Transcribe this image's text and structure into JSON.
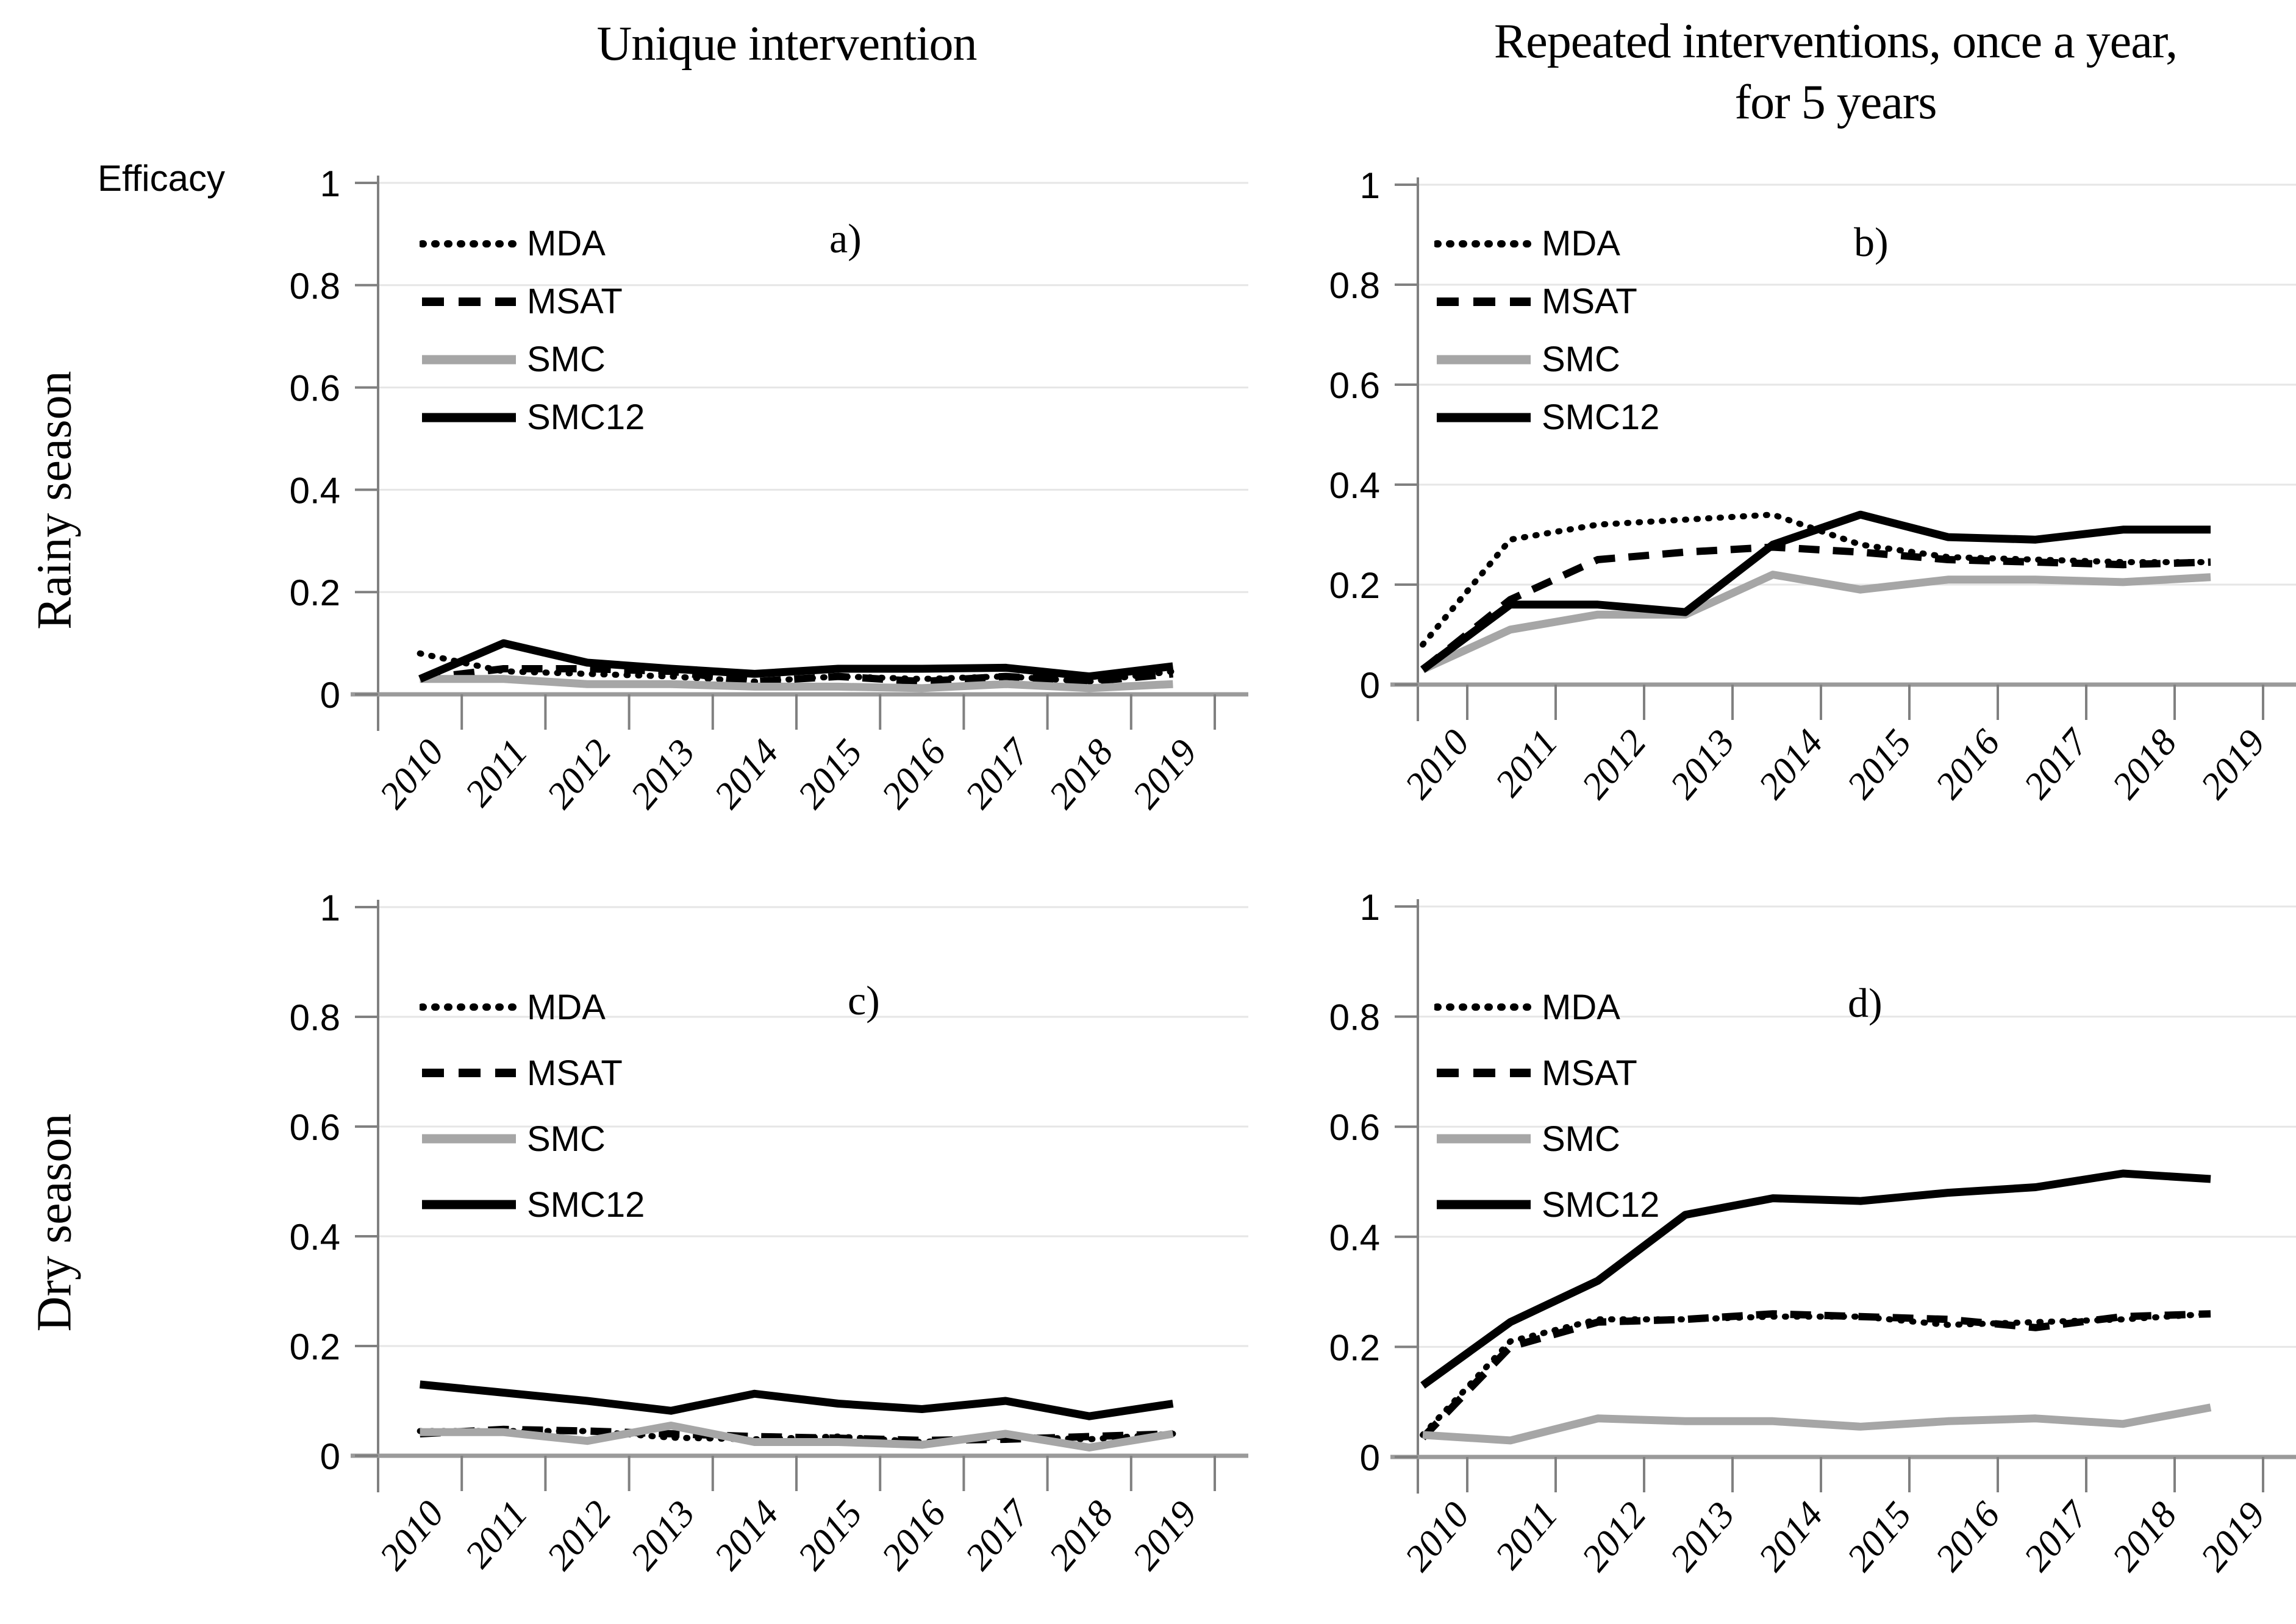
{
  "figure": {
    "col_title_left": "Unique intervention",
    "col_title_right_line1": "Repeated interventions, once a year,",
    "col_title_right_line2": "for 5 years",
    "y_axis_label": "Efficacy",
    "row_labels": [
      "Rainy season",
      "Dry season"
    ],
    "colors": {
      "black": "#000000",
      "gray": "#a6a6a6",
      "gridline": "#e6e6e6",
      "axis": "#9a9a9a"
    }
  },
  "legend": {
    "items": [
      {
        "label": "MDA",
        "icon": "dotted-line-swatch",
        "style": "dotted",
        "color": "#000000"
      },
      {
        "label": "MSAT",
        "icon": "dashed-line-swatch",
        "style": "dashed",
        "color": "#000000"
      },
      {
        "label": "SMC",
        "icon": "solid-line-swatch",
        "style": "solid",
        "color": "#a6a6a6"
      },
      {
        "label": "SMC12",
        "icon": "solid-line-swatch",
        "style": "solid",
        "color": "#000000"
      }
    ]
  },
  "chart_data": [
    {
      "type": "line",
      "panel": "a)",
      "row": "Rainy season",
      "column": "Unique intervention",
      "x": [
        "2010",
        "2011",
        "2012",
        "2013",
        "2014",
        "2015",
        "2016",
        "2017",
        "2018",
        "2019"
      ],
      "ylim": [
        0,
        1
      ],
      "yticks": [
        1,
        0.8,
        0.6,
        0.4,
        0.2,
        0
      ],
      "grid": true,
      "legend_position": "top-left",
      "series": [
        {
          "name": "MDA",
          "style": "dotted",
          "color": "#000000",
          "values": [
            0.08,
            0.045,
            0.04,
            0.035,
            0.025,
            0.035,
            0.03,
            0.035,
            0.025,
            0.045
          ]
        },
        {
          "name": "MSAT",
          "style": "dashed",
          "color": "#000000",
          "values": [
            0.03,
            0.05,
            0.05,
            0.045,
            0.025,
            0.035,
            0.025,
            0.035,
            0.025,
            0.04
          ]
        },
        {
          "name": "SMC",
          "style": "solid",
          "color": "#a6a6a6",
          "values": [
            0.03,
            0.03,
            0.02,
            0.02,
            0.015,
            0.015,
            0.012,
            0.02,
            0.012,
            0.02
          ]
        },
        {
          "name": "SMC12",
          "style": "solid",
          "color": "#000000",
          "values": [
            0.03,
            0.1,
            0.062,
            0.05,
            0.04,
            0.05,
            0.05,
            0.052,
            0.035,
            0.055
          ]
        }
      ]
    },
    {
      "type": "line",
      "panel": "b)",
      "row": "Rainy season",
      "column": "Repeated interventions, once a year, for 5 years",
      "x": [
        "2010",
        "2011",
        "2012",
        "2013",
        "2014",
        "2015",
        "2016",
        "2017",
        "2018",
        "2019"
      ],
      "ylim": [
        0,
        1
      ],
      "yticks": [
        1,
        0.8,
        0.6,
        0.4,
        0.2,
        0
      ],
      "grid": true,
      "legend_position": "top-left",
      "series": [
        {
          "name": "MDA",
          "style": "dotted",
          "color": "#000000",
          "values": [
            0.08,
            0.29,
            0.32,
            0.33,
            0.34,
            0.28,
            0.255,
            0.25,
            0.245,
            0.245
          ]
        },
        {
          "name": "MSAT",
          "style": "dashed",
          "color": "#000000",
          "values": [
            0.03,
            0.17,
            0.25,
            0.265,
            0.275,
            0.265,
            0.25,
            0.245,
            0.24,
            0.245
          ]
        },
        {
          "name": "SMC",
          "style": "solid",
          "color": "#a6a6a6",
          "values": [
            0.03,
            0.11,
            0.14,
            0.14,
            0.22,
            0.19,
            0.21,
            0.21,
            0.205,
            0.215
          ]
        },
        {
          "name": "SMC12",
          "style": "solid",
          "color": "#000000",
          "values": [
            0.03,
            0.16,
            0.16,
            0.145,
            0.28,
            0.34,
            0.295,
            0.29,
            0.31,
            0.31
          ]
        }
      ]
    },
    {
      "type": "line",
      "panel": "c)",
      "row": "Dry season",
      "column": "Unique intervention",
      "x": [
        "2010",
        "2011",
        "2012",
        "2013",
        "2014",
        "2015",
        "2016",
        "2017",
        "2018",
        "2019"
      ],
      "ylim": [
        0,
        1
      ],
      "yticks": [
        1,
        0.8,
        0.6,
        0.4,
        0.2,
        0
      ],
      "grid": true,
      "legend_position": "top-left",
      "series": [
        {
          "name": "MDA",
          "style": "dotted",
          "color": "#000000",
          "values": [
            0.045,
            0.045,
            0.045,
            0.033,
            0.03,
            0.035,
            0.025,
            0.035,
            0.03,
            0.04
          ]
        },
        {
          "name": "MSAT",
          "style": "dashed",
          "color": "#000000",
          "values": [
            0.04,
            0.048,
            0.045,
            0.04,
            0.035,
            0.032,
            0.028,
            0.03,
            0.035,
            0.04
          ]
        },
        {
          "name": "SMC",
          "style": "solid",
          "color": "#a6a6a6",
          "values": [
            0.043,
            0.043,
            0.027,
            0.055,
            0.025,
            0.025,
            0.02,
            0.04,
            0.015,
            0.04
          ]
        },
        {
          "name": "SMC12",
          "style": "solid",
          "color": "#000000",
          "values": [
            0.13,
            0.115,
            0.1,
            0.082,
            0.113,
            0.095,
            0.085,
            0.1,
            0.072,
            0.095
          ]
        }
      ]
    },
    {
      "type": "line",
      "panel": "d)",
      "row": "Dry season",
      "column": "Repeated interventions, once a year, for 5 years",
      "x": [
        "2010",
        "2011",
        "2012",
        "2013",
        "2014",
        "2015",
        "2016",
        "2017",
        "2018",
        "2019"
      ],
      "ylim": [
        0,
        1
      ],
      "yticks": [
        1,
        0.8,
        0.6,
        0.4,
        0.2,
        0
      ],
      "grid": true,
      "legend_position": "top-left",
      "series": [
        {
          "name": "MDA",
          "style": "dotted",
          "color": "#000000",
          "values": [
            0.04,
            0.21,
            0.25,
            0.25,
            0.255,
            0.255,
            0.24,
            0.245,
            0.25,
            0.26
          ]
        },
        {
          "name": "MSAT",
          "style": "dashed",
          "color": "#000000",
          "values": [
            0.035,
            0.2,
            0.245,
            0.25,
            0.26,
            0.255,
            0.25,
            0.235,
            0.255,
            0.26
          ]
        },
        {
          "name": "SMC",
          "style": "solid",
          "color": "#a6a6a6",
          "values": [
            0.04,
            0.03,
            0.07,
            0.065,
            0.065,
            0.055,
            0.065,
            0.07,
            0.06,
            0.09
          ]
        },
        {
          "name": "SMC12",
          "style": "solid",
          "color": "#000000",
          "values": [
            0.13,
            0.245,
            0.32,
            0.44,
            0.47,
            0.465,
            0.48,
            0.49,
            0.515,
            0.505
          ]
        }
      ]
    }
  ]
}
